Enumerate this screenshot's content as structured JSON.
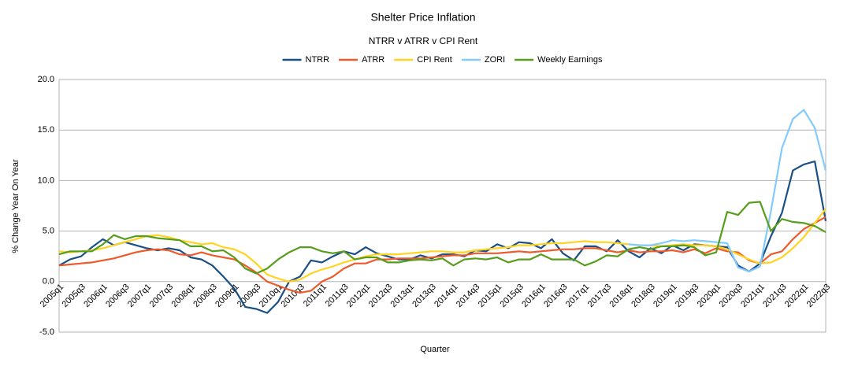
{
  "chart_data": {
    "type": "line",
    "title": "Shelter Price Inflation",
    "subtitle": "NTRR v ATRR v CPI Rent",
    "x_label": "Quarter",
    "y_label": "% Change Year On Year",
    "legend": "top",
    "grid": true,
    "ylim": [
      -5,
      20
    ],
    "yticks": [
      {
        "value": -5,
        "label": "-5.0"
      },
      {
        "value": 0,
        "label": "0.0"
      },
      {
        "value": 5,
        "label": "5.0"
      },
      {
        "value": 10,
        "label": "10.0"
      },
      {
        "value": 15,
        "label": "15.0"
      },
      {
        "value": 20,
        "label": "20.0"
      }
    ],
    "categories": [
      "2005q1",
      null,
      "2005q3",
      null,
      "2006q1",
      null,
      "2006q3",
      null,
      "2007q1",
      null,
      "2007q3",
      null,
      "2008q1",
      null,
      "2008q3",
      null,
      "2009q1",
      null,
      "2009q3",
      null,
      "2010q1",
      null,
      "2010q3",
      null,
      "2011q1",
      null,
      "2011q3",
      null,
      "2012q1",
      null,
      "2012q3",
      null,
      "2013q1",
      null,
      "2013q3",
      null,
      "2014q1",
      null,
      "2014q3",
      null,
      "2015q1",
      null,
      "2015q3",
      null,
      "2016q1",
      null,
      "2016q3",
      null,
      "2017q1",
      null,
      "2017q3",
      null,
      "2018q1",
      null,
      "2018q3",
      null,
      "2019q1",
      null,
      "2019q3",
      null,
      "2020q1",
      null,
      "2020q3",
      null,
      "2021q1",
      null,
      "2021q3",
      null,
      "2022q1",
      null,
      "2022q3"
    ],
    "series": [
      {
        "name": "NTRR",
        "color": "#1a4f86",
        "values": [
          1.6,
          2.2,
          2.5,
          3.4,
          4.2,
          3.6,
          3.9,
          3.6,
          3.3,
          3.1,
          3.3,
          3.1,
          2.4,
          2.2,
          1.6,
          0.5,
          -0.7,
          -2.5,
          -2.7,
          -3.1,
          -2.0,
          0.0,
          0.5,
          2.1,
          1.9,
          2.5,
          3.0,
          2.7,
          3.4,
          2.8,
          2.5,
          2.2,
          2.2,
          2.6,
          2.3,
          2.7,
          2.7,
          2.5,
          3.1,
          3.0,
          3.7,
          3.3,
          3.9,
          3.8,
          3.3,
          4.2,
          2.8,
          2.1,
          3.5,
          3.5,
          3.0,
          4.1,
          3.0,
          2.4,
          3.3,
          2.8,
          3.6,
          3.1,
          3.7,
          3.6,
          3.5,
          3.4,
          1.6,
          1.0,
          1.8,
          4.5,
          6.8,
          11.0,
          11.6,
          11.9,
          6.0
        ]
      },
      {
        "name": "ATRR",
        "color": "#ee5a2a",
        "values": [
          1.6,
          1.7,
          1.8,
          1.9,
          2.1,
          2.3,
          2.6,
          2.9,
          3.1,
          3.2,
          3.1,
          2.7,
          2.6,
          2.9,
          2.6,
          2.4,
          2.2,
          1.6,
          0.9,
          0.0,
          -0.4,
          -0.8,
          -1.1,
          -0.9,
          0.0,
          0.5,
          1.3,
          1.8,
          1.8,
          2.2,
          2.2,
          2.3,
          2.3,
          2.3,
          2.4,
          2.5,
          2.6,
          2.6,
          2.8,
          2.8,
          2.8,
          2.9,
          3.0,
          2.9,
          3.0,
          3.1,
          3.2,
          3.2,
          3.3,
          3.3,
          3.1,
          2.9,
          3.1,
          2.9,
          3.0,
          3.0,
          3.1,
          2.9,
          3.2,
          2.8,
          3.3,
          3.0,
          2.9,
          2.1,
          1.8,
          2.7,
          3.0,
          4.2,
          5.2,
          5.8,
          6.4
        ]
      },
      {
        "name": "CPI Rent",
        "color": "#ffd320",
        "values": [
          3.0,
          2.9,
          3.0,
          3.1,
          3.3,
          3.6,
          3.9,
          4.2,
          4.5,
          4.6,
          4.4,
          4.1,
          3.9,
          3.7,
          3.8,
          3.4,
          3.2,
          2.7,
          1.8,
          0.7,
          0.3,
          0.0,
          0.2,
          0.8,
          1.2,
          1.5,
          1.9,
          2.2,
          2.5,
          2.7,
          2.7,
          2.7,
          2.8,
          2.9,
          3.0,
          3.0,
          2.9,
          2.9,
          3.1,
          3.2,
          3.3,
          3.4,
          3.6,
          3.6,
          3.7,
          3.8,
          3.8,
          3.9,
          4.0,
          3.9,
          3.9,
          3.8,
          3.7,
          3.6,
          3.6,
          3.5,
          3.6,
          3.7,
          3.6,
          3.6,
          3.5,
          3.2,
          2.7,
          2.2,
          1.8,
          1.9,
          2.4,
          3.3,
          4.4,
          5.8,
          7.2
        ]
      },
      {
        "name": "ZORI",
        "color": "#83caff",
        "values": [
          null,
          null,
          null,
          null,
          null,
          null,
          null,
          null,
          null,
          null,
          null,
          null,
          null,
          null,
          null,
          null,
          null,
          null,
          null,
          null,
          null,
          null,
          null,
          null,
          null,
          null,
          null,
          null,
          null,
          null,
          null,
          null,
          null,
          null,
          null,
          null,
          null,
          null,
          null,
          null,
          null,
          null,
          null,
          null,
          null,
          null,
          null,
          null,
          null,
          null,
          null,
          null,
          3.7,
          3.6,
          3.6,
          3.8,
          4.1,
          4.0,
          4.1,
          4.0,
          3.9,
          3.8,
          1.4,
          1.0,
          1.5,
          7.0,
          13.2,
          16.1,
          17.0,
          15.2,
          11.0
        ]
      },
      {
        "name": "Weekly Earnings",
        "color": "#579d1c",
        "values": [
          2.7,
          3.0,
          3.0,
          3.0,
          3.7,
          4.6,
          4.2,
          4.5,
          4.5,
          4.3,
          4.2,
          4.1,
          3.5,
          3.5,
          3.0,
          3.1,
          2.4,
          1.3,
          0.8,
          1.3,
          2.2,
          2.9,
          3.4,
          3.4,
          3.0,
          2.8,
          3.0,
          2.2,
          2.4,
          2.4,
          1.9,
          1.9,
          2.1,
          2.2,
          2.1,
          2.3,
          1.6,
          2.2,
          2.3,
          2.2,
          2.4,
          1.9,
          2.2,
          2.2,
          2.7,
          2.2,
          2.2,
          2.2,
          1.6,
          2.0,
          2.6,
          2.5,
          3.2,
          3.4,
          3.2,
          3.5,
          3.5,
          3.6,
          3.4,
          2.6,
          2.9,
          6.9,
          6.6,
          7.8,
          7.9,
          5.0,
          6.2,
          5.9,
          5.8,
          5.5,
          4.9
        ]
      }
    ]
  }
}
